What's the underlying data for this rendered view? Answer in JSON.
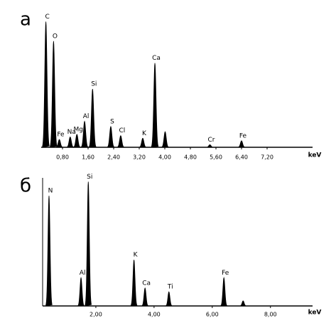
{
  "chart_data": [
    {
      "type": "spectrum",
      "panel_label": "а",
      "x_label": "keV",
      "x": [
        0.28,
        0.52,
        0.7,
        1.04,
        1.25,
        1.49,
        1.74,
        2.31,
        2.62,
        3.31,
        3.69,
        4.01,
        5.41,
        6.4
      ],
      "values": [
        97,
        82,
        6,
        8,
        10,
        20,
        45,
        16,
        9,
        7,
        65,
        12,
        2,
        5
      ],
      "peak_labels": [
        "C",
        "O",
        "Fe",
        "Na",
        "Mg",
        "Al",
        "Si",
        "S",
        "Cl",
        "K",
        "Ca",
        null,
        "Cr",
        "Fe"
      ],
      "color": "#000000",
      "xlim": [
        0,
        8.6
      ],
      "ylim": [
        0,
        100
      ],
      "xticks": [
        {
          "value": 0.8,
          "label": "0,80"
        },
        {
          "value": 1.6,
          "label": "1,60"
        },
        {
          "value": 2.4,
          "label": "2,40"
        },
        {
          "value": 3.2,
          "label": "3,20"
        },
        {
          "value": 4.0,
          "label": "4,00"
        },
        {
          "value": 4.8,
          "label": "4,80"
        },
        {
          "value": 5.6,
          "label": "5,60"
        },
        {
          "value": 6.4,
          "label": "6,40"
        },
        {
          "value": 7.2,
          "label": "7,20"
        }
      ]
    },
    {
      "type": "spectrum",
      "panel_label": "б",
      "x_label": "keV",
      "x": [
        0.39,
        1.49,
        1.74,
        3.31,
        3.69,
        4.51,
        6.4,
        7.06
      ],
      "values": [
        86,
        22,
        97,
        36,
        14,
        11,
        22,
        4
      ],
      "peak_labels": [
        "N",
        "Al",
        "Si",
        "K",
        "Ca",
        "Ti",
        "Fe",
        null
      ],
      "color": "#000000",
      "xlim": [
        0,
        9.3
      ],
      "ylim": [
        0,
        100
      ],
      "xticks": [
        {
          "value": 2,
          "label": "2,00"
        },
        {
          "value": 4,
          "label": "4,00"
        },
        {
          "value": 6,
          "label": "6,00"
        },
        {
          "value": 8,
          "label": "8,00"
        }
      ]
    }
  ]
}
